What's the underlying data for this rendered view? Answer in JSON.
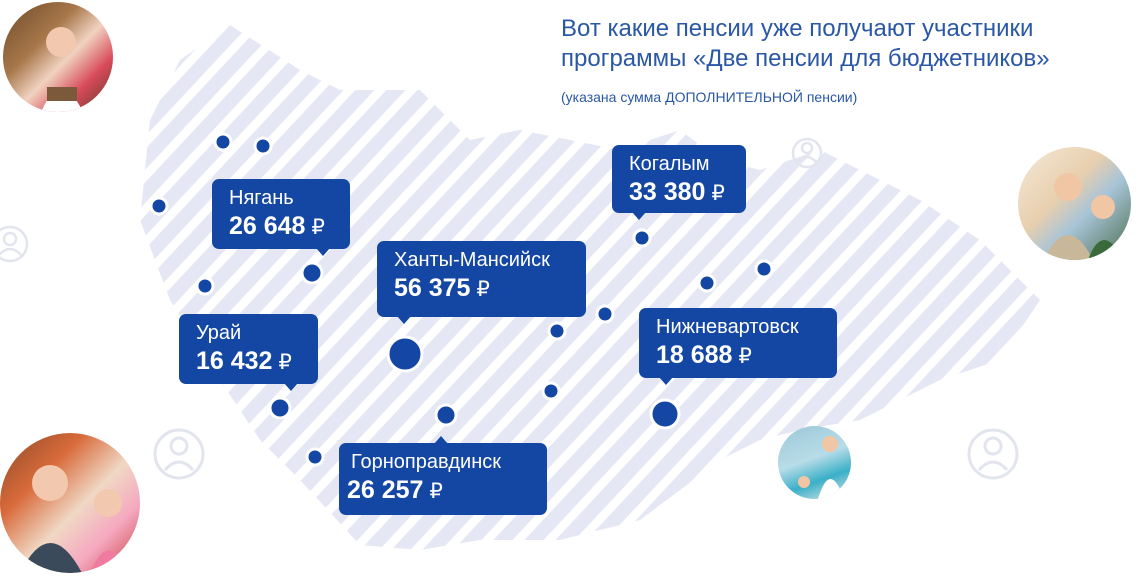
{
  "heading": {
    "line1": "Вот какие пенсии уже получают участники",
    "line2": "программы «Две пенсии для бюджетников»",
    "note": "(указана сумма ДОПОЛНИТЕЛЬНОЙ пенсии)"
  },
  "cities": [
    {
      "name": "Нягань",
      "amount": "26 648",
      "currency": "₽"
    },
    {
      "name": "Урай",
      "amount": "16 432",
      "currency": "₽"
    },
    {
      "name": "Ханты-Мансийск",
      "amount": "56 375",
      "currency": "₽"
    },
    {
      "name": "Когалым",
      "amount": "33 380",
      "currency": "₽"
    },
    {
      "name": "Нижневартовск",
      "amount": "18 688",
      "currency": "₽"
    },
    {
      "name": "Горноправдинск",
      "amount": "26 257",
      "currency": "₽"
    }
  ],
  "colors": {
    "accent": "#1447a3",
    "heading": "#2a58a6",
    "stripes": "#e5e8f4",
    "person_icon": "#e2e5ee"
  },
  "icons": [
    "person-icon"
  ]
}
